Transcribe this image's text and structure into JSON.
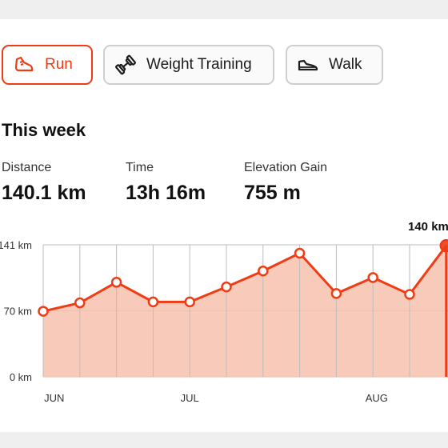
{
  "tabs": [
    {
      "label": "Run",
      "icon": "shoe-icon",
      "active": true
    },
    {
      "label": "Weight Training",
      "icon": "dumbbell-icon",
      "active": false
    },
    {
      "label": "Walk",
      "icon": "sneaker-icon",
      "active": false
    }
  ],
  "week": {
    "title": "This week",
    "stats": [
      {
        "label": "Distance",
        "value": "140.1 km"
      },
      {
        "label": "Time",
        "value": "13h 16m"
      },
      {
        "label": "Elevation Gain",
        "value": "755 m"
      }
    ]
  },
  "colors": {
    "accent": "#f03c14",
    "fill": "#f7c1ad",
    "grid": "#bdbdbd"
  },
  "chart_data": {
    "type": "area",
    "y_ticks": [
      "0 km",
      "70 km",
      "141 km"
    ],
    "x_ticks": [
      "JUN",
      "JUL",
      "AUG"
    ],
    "ylim": [
      0,
      141
    ],
    "values": [
      70,
      79,
      101,
      80,
      80,
      96,
      113,
      132,
      89,
      106,
      88,
      140
    ],
    "highlight_label": "140 km",
    "grid": true
  }
}
